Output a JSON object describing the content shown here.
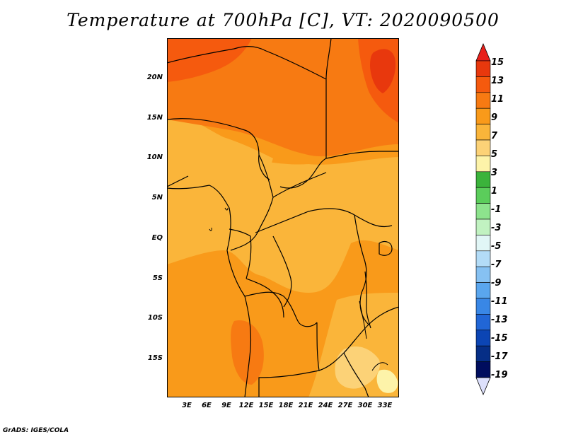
{
  "title": "Temperature at 700hPa [C], VT: 2020090500",
  "credit": "GrADS: IGES/COLA",
  "lat_axis": {
    "labels": [
      "20N",
      "15N",
      "10N",
      "5N",
      "EQ",
      "5S",
      "10S",
      "15S"
    ],
    "values": [
      20,
      15,
      10,
      5,
      0,
      -5,
      -10,
      -15
    ],
    "range": [
      -20,
      24.5
    ]
  },
  "lon_axis": {
    "labels": [
      "3E",
      "6E",
      "9E",
      "12E",
      "15E",
      "18E",
      "21E",
      "24E",
      "27E",
      "30E",
      "33E"
    ],
    "values": [
      3,
      6,
      9,
      12,
      15,
      18,
      21,
      24,
      27,
      30,
      33
    ],
    "range": [
      0,
      35
    ]
  },
  "colorbar": {
    "labels": [
      "15",
      "13",
      "11",
      "9",
      "7",
      "5",
      "3",
      "1",
      "-1",
      "-3",
      "-5",
      "-7",
      "-9",
      "-11",
      "-13",
      "-15",
      "-17",
      "-19"
    ],
    "colors": [
      "#e8380d",
      "#f55a0e",
      "#f77a12",
      "#f99a1a",
      "#fab53a",
      "#fcd277",
      "#fdf3a9",
      "#3bb33b",
      "#5bcd5b",
      "#8de38d",
      "#c1f2c1",
      "#e1f6f6",
      "#b3dcf7",
      "#86c1f2",
      "#5aa6ee",
      "#3987e6",
      "#2166d6",
      "#0c45b4",
      "#062e86",
      "#000d5e"
    ],
    "top_arrow_color": "#e8201a",
    "bottom_arrow_color": "#dde0fc"
  }
}
